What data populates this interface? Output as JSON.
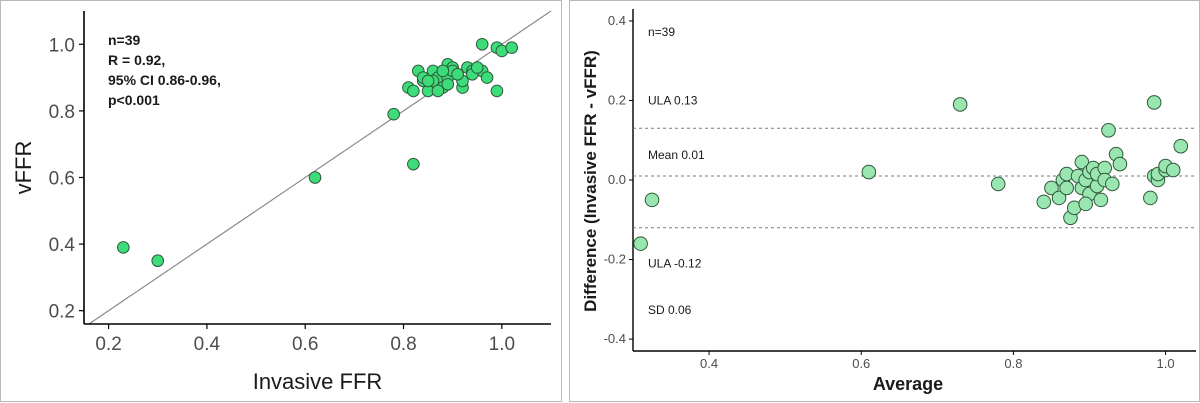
{
  "colors": {
    "point_fill_left": "#3ddc7a",
    "point_fill_right": "#99e6b0",
    "point_stroke": "#2f5a3a",
    "axis": "#000000",
    "identity_line": "#8a8a8a",
    "ref_line": "#7a7a7a"
  },
  "chart_data": [
    {
      "type": "scatter",
      "title": "",
      "xlabel": "Invasive FFR",
      "ylabel": "vFFR",
      "xlim": [
        0.15,
        1.1
      ],
      "ylim": [
        0.16,
        1.1
      ],
      "x_ticks": [
        "0.2",
        "0.4",
        "0.6",
        "0.8",
        "1.0"
      ],
      "y_ticks": [
        "0.2",
        "0.4",
        "0.6",
        "0.8",
        "1.0"
      ],
      "grid": false,
      "identity_line": true,
      "annotations": [
        "n=39",
        "R = 0.92,",
        "95% CI 0.86-0.96,",
        "p<0.001"
      ],
      "x": [
        0.23,
        0.3,
        0.62,
        0.78,
        0.82,
        0.83,
        0.85,
        0.96,
        0.99,
        1.0,
        1.02,
        0.81,
        0.84,
        0.86,
        0.87,
        0.88,
        0.89,
        0.9,
        0.91,
        0.92,
        0.93,
        0.94,
        0.96,
        0.97,
        0.99,
        0.82,
        0.84,
        0.86,
        0.88,
        0.89,
        0.9,
        0.92,
        0.94,
        0.87,
        0.89,
        0.91,
        0.95,
        0.85,
        0.88
      ],
      "y": [
        0.39,
        0.35,
        0.6,
        0.79,
        0.64,
        0.92,
        0.86,
        1.0,
        0.99,
        0.98,
        0.99,
        0.87,
        0.89,
        0.92,
        0.9,
        0.92,
        0.94,
        0.93,
        0.91,
        0.87,
        0.93,
        0.92,
        0.92,
        0.9,
        0.86,
        0.86,
        0.9,
        0.89,
        0.87,
        0.9,
        0.92,
        0.89,
        0.91,
        0.86,
        0.88,
        0.91,
        0.93,
        0.89,
        0.92
      ]
    },
    {
      "type": "scatter",
      "title": "",
      "xlabel": "Average",
      "ylabel": "Difference (Invasive FFR - vFFR)",
      "xlim": [
        0.3,
        1.04
      ],
      "ylim": [
        -0.43,
        0.43
      ],
      "x_ticks": [
        "0.4",
        "0.6",
        "0.8",
        "1.0"
      ],
      "y_ticks": [
        "0.4",
        "0.2",
        "0.0",
        "-0.2",
        "-0.4"
      ],
      "grid": false,
      "reference_lines": [
        {
          "label": "ULA 0.13",
          "value": 0.13
        },
        {
          "label": "Mean 0.01",
          "value": 0.01
        },
        {
          "label": "ULA -0.12",
          "value": -0.12
        }
      ],
      "annotations": [
        "n=39",
        "SD 0.06"
      ],
      "x": [
        0.31,
        0.325,
        0.61,
        0.73,
        0.78,
        0.84,
        0.85,
        0.86,
        0.865,
        0.87,
        0.875,
        0.88,
        0.885,
        0.89,
        0.89,
        0.895,
        0.9,
        0.9,
        0.905,
        0.91,
        0.91,
        0.915,
        0.92,
        0.92,
        0.925,
        0.93,
        0.935,
        0.94,
        0.98,
        0.985,
        0.985,
        0.99,
        0.99,
        1.0,
        1.0,
        1.01,
        1.02,
        0.87,
        0.895
      ],
      "y": [
        -0.16,
        -0.05,
        0.02,
        0.19,
        -0.01,
        -0.055,
        -0.02,
        -0.045,
        0.0,
        0.015,
        -0.095,
        -0.07,
        0.01,
        -0.02,
        0.045,
        0.0,
        -0.035,
        0.02,
        0.03,
        -0.015,
        0.015,
        -0.05,
        0.03,
        0.0,
        0.125,
        -0.01,
        0.065,
        0.04,
        -0.045,
        0.195,
        0.01,
        0.0,
        0.015,
        0.025,
        0.035,
        0.025,
        0.085,
        -0.02,
        -0.06
      ]
    }
  ]
}
